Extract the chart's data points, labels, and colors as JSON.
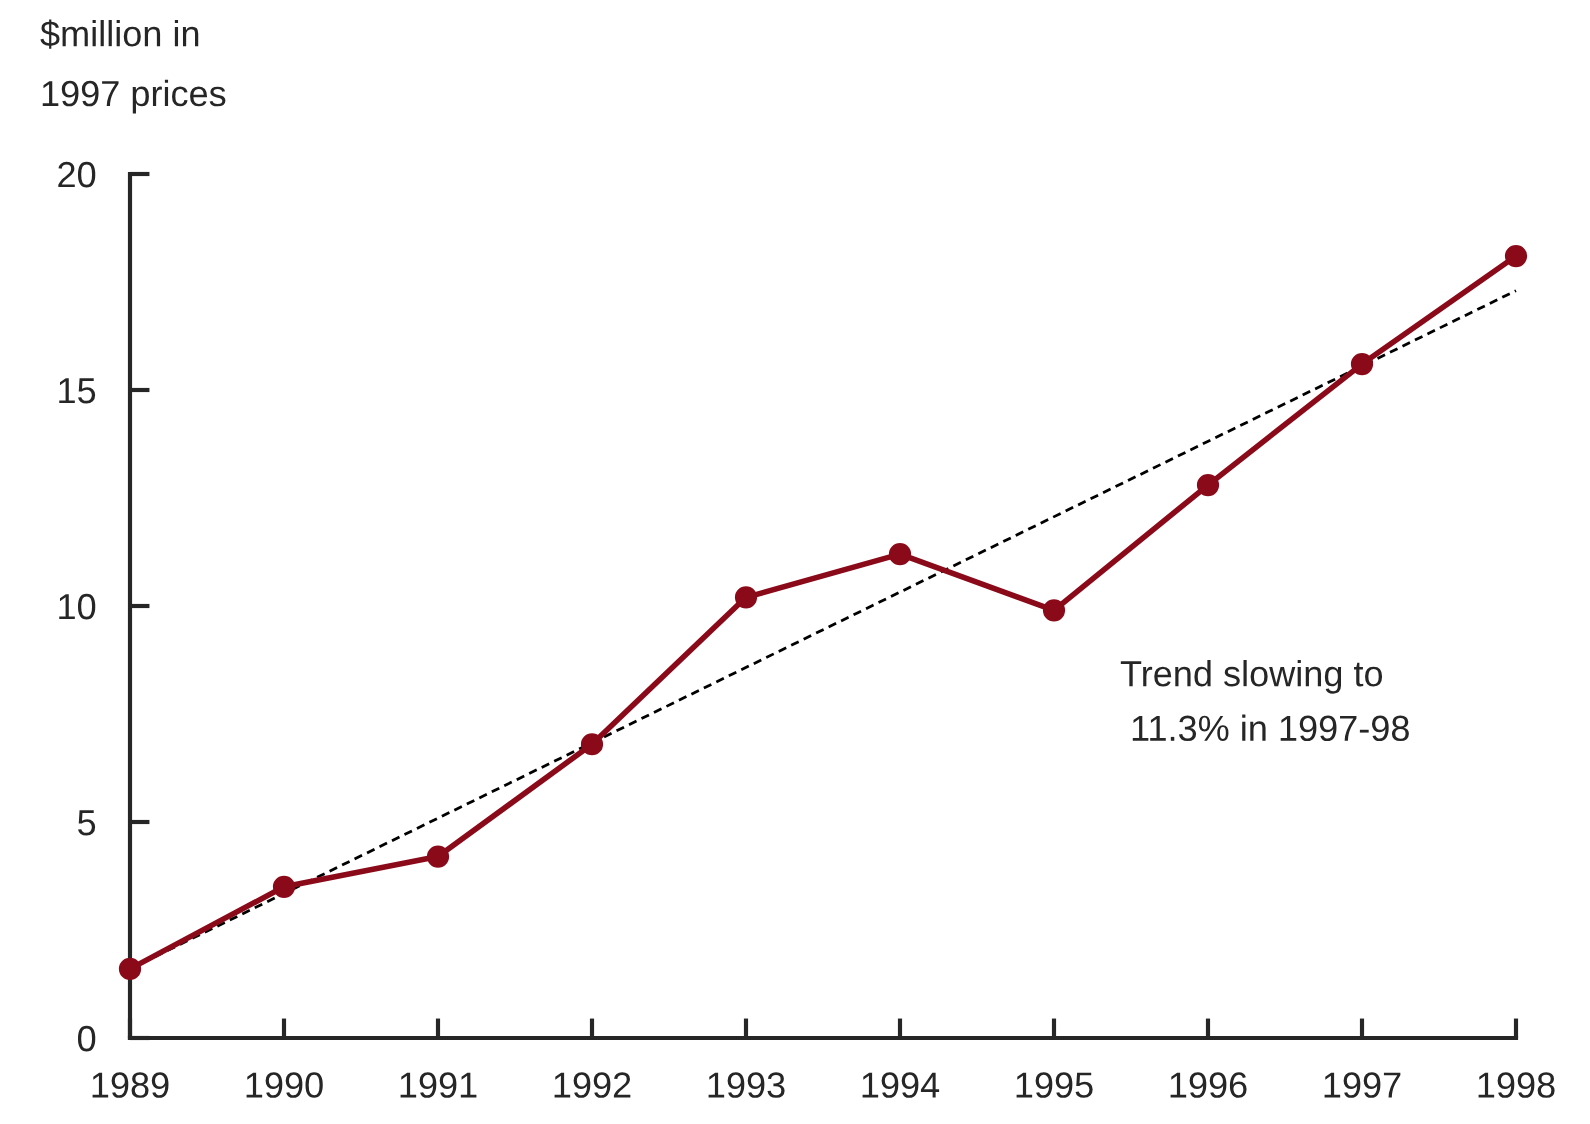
{
  "chart_data": {
    "type": "line",
    "ylabel": "$million in\n1997 prices",
    "x": [
      1989,
      1990,
      1991,
      1992,
      1993,
      1994,
      1995,
      1996,
      1997,
      1998
    ],
    "series": [
      {
        "color": "#8b0a1a",
        "values": [
          1.6,
          3.5,
          4.2,
          6.8,
          10.2,
          11.2,
          9.9,
          12.8,
          15.6,
          18.1
        ],
        "marker": "circle",
        "line_style": "solid"
      },
      {
        "type": "line",
        "color": "#000000",
        "x": [
          1989,
          1998
        ],
        "values": [
          1.6,
          17.3
        ],
        "marker": "none",
        "line_style": "dashed"
      }
    ],
    "xlim": [
      1989,
      1998
    ],
    "xticks": [
      1989,
      1990,
      1991,
      1992,
      1993,
      1994,
      1995,
      1996,
      1997,
      1998
    ],
    "ylim": [
      0,
      20
    ],
    "yticks": [
      0,
      5,
      10,
      15,
      20
    ],
    "annotations": [
      "Trend slowing to\n 11.3% in 1997-98"
    ],
    "grid": false,
    "legend": false
  }
}
